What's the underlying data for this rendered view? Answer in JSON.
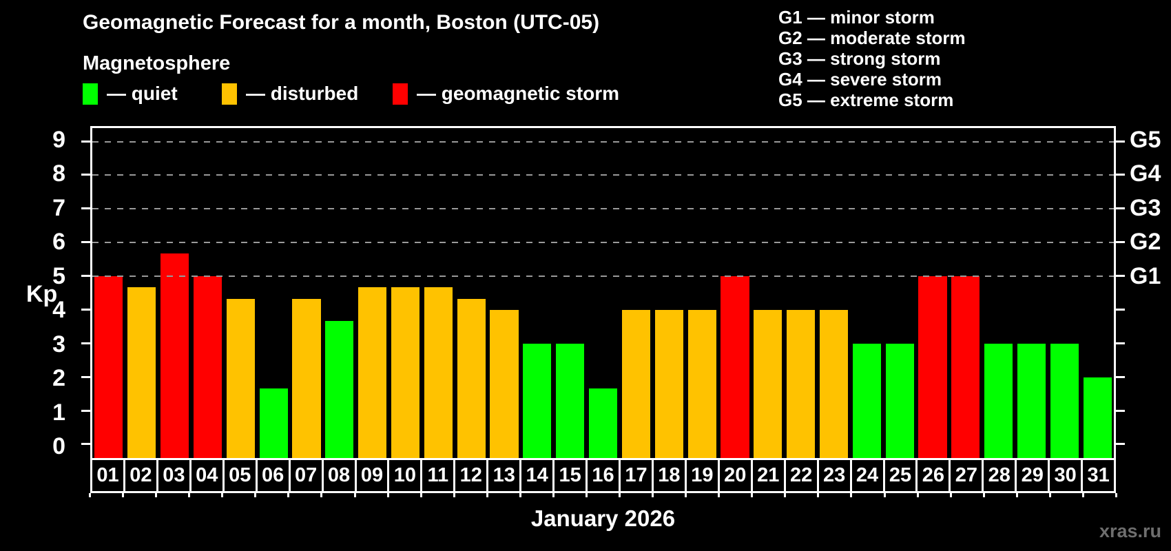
{
  "header": {
    "title": "Geomagnetic Forecast for a month, Boston (UTC-05)",
    "subtitle": "Magnetosphere"
  },
  "legend": {
    "items": [
      {
        "key": "quiet",
        "label": "— quiet",
        "color": "#00ff00"
      },
      {
        "key": "disturbed",
        "label": "— disturbed",
        "color": "#ffc200"
      },
      {
        "key": "storm",
        "label": "— geomagnetic storm",
        "color": "#ff0000"
      }
    ]
  },
  "g_legend": [
    "G1 — minor storm",
    "G2 — moderate storm",
    "G3 — strong storm",
    "G4 — severe storm",
    "G5 — extreme storm"
  ],
  "chart_data": {
    "type": "bar",
    "title": "Geomagnetic Forecast for a month, Boston (UTC-05)",
    "xlabel": "January 2026",
    "ylabel": "Kp",
    "ylim": [
      -0.4,
      9.4
    ],
    "yticks": [
      0,
      1,
      2,
      3,
      4,
      5,
      6,
      7,
      8,
      9
    ],
    "gridlines": [
      5,
      6,
      7,
      8,
      9
    ],
    "grid": "dashed, upper storm levels only",
    "legend_position": "top",
    "right_axis_labels": [
      {
        "value": 5,
        "label": "G1"
      },
      {
        "value": 6,
        "label": "G2"
      },
      {
        "value": 7,
        "label": "G3"
      },
      {
        "value": 8,
        "label": "G4"
      },
      {
        "value": 9,
        "label": "G5"
      }
    ],
    "status_colors": {
      "quiet": "#00ff00",
      "disturbed": "#ffc200",
      "storm": "#ff0000"
    },
    "categories": [
      "01",
      "02",
      "03",
      "04",
      "05",
      "06",
      "07",
      "08",
      "09",
      "10",
      "11",
      "12",
      "13",
      "14",
      "15",
      "16",
      "17",
      "18",
      "19",
      "20",
      "21",
      "22",
      "23",
      "24",
      "25",
      "26",
      "27",
      "28",
      "29",
      "30",
      "31"
    ],
    "values": [
      5,
      4.67,
      5.67,
      5,
      4.33,
      1.67,
      4.33,
      3.67,
      4.67,
      4.67,
      4.67,
      4.33,
      4,
      3,
      3,
      1.67,
      4,
      4,
      4,
      5,
      4,
      4,
      4,
      3,
      3,
      5,
      5,
      3,
      3,
      3,
      2
    ],
    "statuses": [
      "storm",
      "disturbed",
      "storm",
      "storm",
      "disturbed",
      "quiet",
      "disturbed",
      "quiet",
      "disturbed",
      "disturbed",
      "disturbed",
      "disturbed",
      "disturbed",
      "quiet",
      "quiet",
      "quiet",
      "disturbed",
      "disturbed",
      "disturbed",
      "storm",
      "disturbed",
      "disturbed",
      "disturbed",
      "quiet",
      "quiet",
      "storm",
      "storm",
      "quiet",
      "quiet",
      "quiet",
      "quiet"
    ]
  },
  "footer": {
    "xlabel": "January 2026",
    "watermark": "xras.ru"
  }
}
